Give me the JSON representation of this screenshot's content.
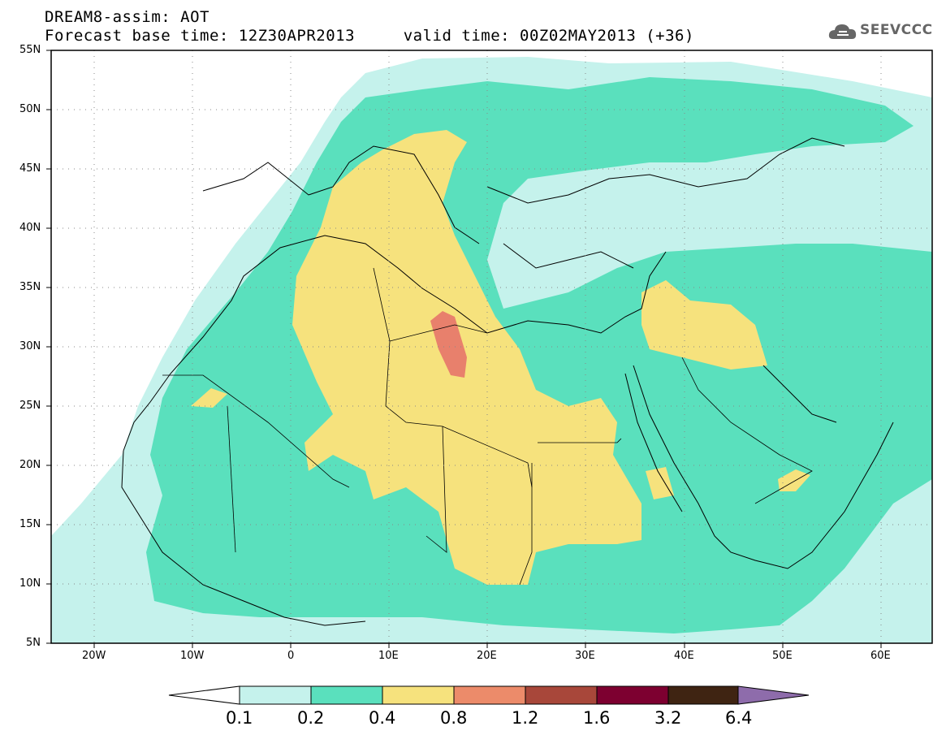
{
  "header": {
    "title_line1": "DREAM8-assim: AOT",
    "title_line2": "Forecast base time: 12Z30APR2013     valid time: 00Z02MAY2013 (+36)"
  },
  "logo": {
    "text": "SEEVCCC",
    "icon": "cloud-icon"
  },
  "map": {
    "lat_labels": [
      "55N",
      "50N",
      "45N",
      "40N",
      "35N",
      "30N",
      "25N",
      "20N",
      "15N",
      "10N",
      "5N"
    ],
    "lon_labels": [
      "20W",
      "10W",
      "0",
      "10E",
      "20E",
      "30E",
      "40E",
      "50E",
      "60E"
    ],
    "lat_range": [
      5,
      55
    ],
    "lon_range": [
      -25,
      65
    ],
    "grid": "dotted"
  },
  "colorbar": {
    "labels": [
      "0.1",
      "0.2",
      "0.4",
      "0.8",
      "1.2",
      "1.6",
      "3.2",
      "6.4"
    ],
    "colors": [
      "#ffffff",
      "#c5f2ec",
      "#5ae0bd",
      "#f6e27d",
      "#ec8b6a",
      "#a8473a",
      "#7d0030",
      "#3f2412",
      "#8e6cab"
    ]
  },
  "colors": {
    "aot_0_1_0_2": "#c5f2ec",
    "aot_0_2_0_4": "#5ae0bd",
    "aot_0_4_0_8": "#f6e27d",
    "aot_0_8_1_2": "#e8806c"
  }
}
